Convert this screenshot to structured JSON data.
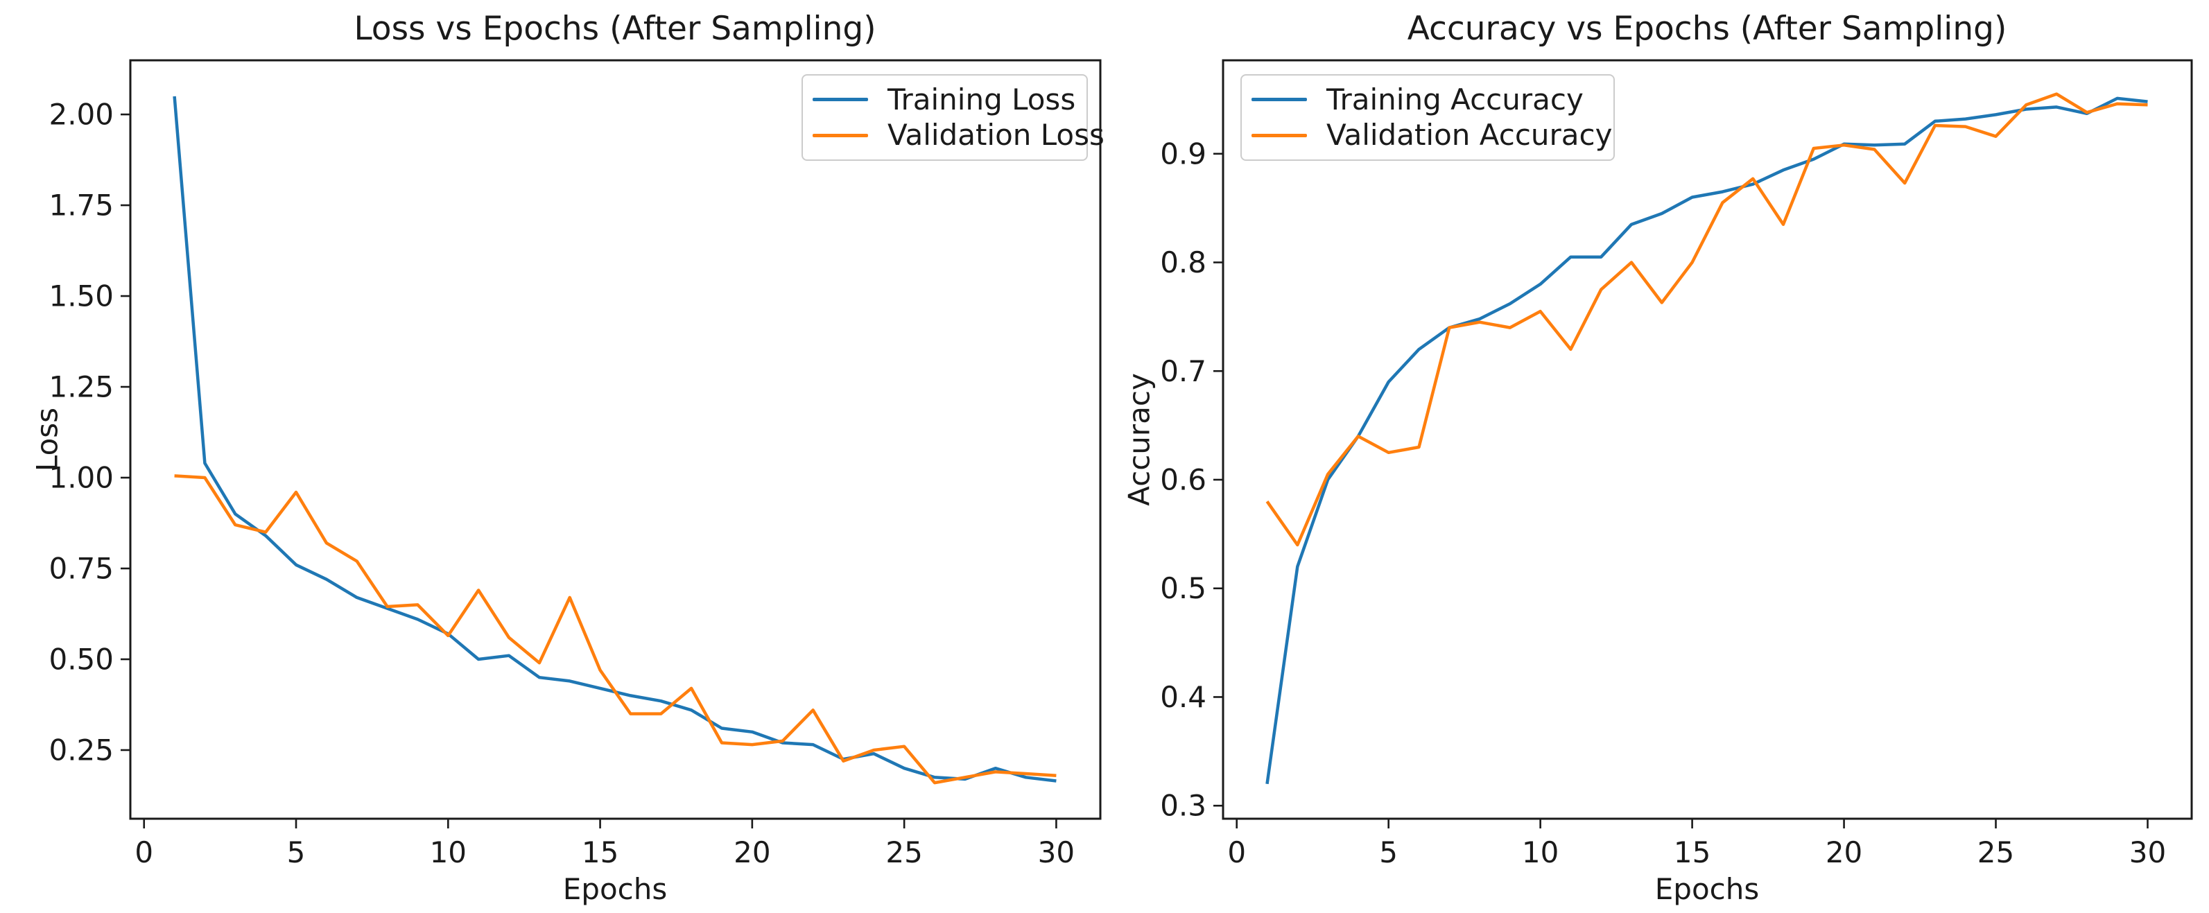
{
  "figure": {
    "background_color": "#ffffff",
    "text_color": "#1a1a1a",
    "accent_blue": "#1f77b4",
    "accent_orange": "#ff7f0e"
  },
  "chart_data": [
    {
      "type": "line",
      "title": "Loss vs Epochs (After Sampling)",
      "xlabel": "Epochs",
      "ylabel": "Loss",
      "x": [
        1,
        2,
        3,
        4,
        5,
        6,
        7,
        8,
        9,
        10,
        11,
        12,
        13,
        14,
        15,
        16,
        17,
        18,
        19,
        20,
        21,
        22,
        23,
        24,
        25,
        26,
        27,
        28,
        29,
        30
      ],
      "series": [
        {
          "name": "Training Loss",
          "color": "#1f77b4",
          "values": [
            2.05,
            1.04,
            0.9,
            0.84,
            0.76,
            0.72,
            0.67,
            0.64,
            0.61,
            0.57,
            0.5,
            0.51,
            0.45,
            0.44,
            0.42,
            0.4,
            0.385,
            0.36,
            0.31,
            0.3,
            0.27,
            0.265,
            0.225,
            0.24,
            0.2,
            0.175,
            0.17,
            0.2,
            0.175,
            0.165
          ]
        },
        {
          "name": "Validation Loss",
          "color": "#ff7f0e",
          "values": [
            1.005,
            1.0,
            0.87,
            0.85,
            0.96,
            0.82,
            0.77,
            0.645,
            0.65,
            0.565,
            0.69,
            0.56,
            0.49,
            0.67,
            0.47,
            0.35,
            0.35,
            0.42,
            0.27,
            0.265,
            0.275,
            0.36,
            0.22,
            0.25,
            0.26,
            0.16,
            0.175,
            0.19,
            0.185,
            0.18
          ]
        }
      ],
      "xlim": [
        -0.45,
        31.45
      ],
      "ylim": [
        0.061,
        2.149
      ],
      "xticks": {
        "values": [
          0,
          5,
          10,
          15,
          20,
          25,
          30
        ],
        "labels": [
          "0",
          "5",
          "10",
          "15",
          "20",
          "25",
          "30"
        ]
      },
      "yticks": {
        "values": [
          0.25,
          0.5,
          0.75,
          1.0,
          1.25,
          1.5,
          1.75,
          2.0
        ],
        "labels": [
          "0.25",
          "0.50",
          "0.75",
          "1.00",
          "1.25",
          "1.50",
          "1.75",
          "2.00"
        ]
      },
      "grid": false,
      "legend_position": "upper right",
      "legend": [
        {
          "label": "Training Loss",
          "color": "#1f77b4"
        },
        {
          "label": "Validation Loss",
          "color": "#ff7f0e"
        }
      ]
    },
    {
      "type": "line",
      "title": "Accuracy vs Epochs (After Sampling)",
      "xlabel": "Epochs",
      "ylabel": "Accuracy",
      "x": [
        1,
        2,
        3,
        4,
        5,
        6,
        7,
        8,
        9,
        10,
        11,
        12,
        13,
        14,
        15,
        16,
        17,
        18,
        19,
        20,
        21,
        22,
        23,
        24,
        25,
        26,
        27,
        28,
        29,
        30
      ],
      "series": [
        {
          "name": "Training Accuracy",
          "color": "#1f77b4",
          "values": [
            0.32,
            0.52,
            0.6,
            0.64,
            0.69,
            0.72,
            0.74,
            0.748,
            0.762,
            0.78,
            0.805,
            0.805,
            0.835,
            0.845,
            0.86,
            0.865,
            0.872,
            0.885,
            0.895,
            0.909,
            0.908,
            0.909,
            0.93,
            0.932,
            0.936,
            0.941,
            0.943,
            0.937,
            0.951,
            0.948
          ]
        },
        {
          "name": "Validation Accuracy",
          "color": "#ff7f0e",
          "values": [
            0.58,
            0.54,
            0.605,
            0.64,
            0.625,
            0.63,
            0.74,
            0.745,
            0.74,
            0.755,
            0.72,
            0.775,
            0.8,
            0.763,
            0.8,
            0.855,
            0.877,
            0.835,
            0.905,
            0.908,
            0.904,
            0.873,
            0.926,
            0.925,
            0.916,
            0.945,
            0.955,
            0.938,
            0.946,
            0.945
          ]
        }
      ],
      "xlim": [
        -0.45,
        31.45
      ],
      "ylim": [
        0.288,
        0.986
      ],
      "xticks": {
        "values": [
          0,
          5,
          10,
          15,
          20,
          25,
          30
        ],
        "labels": [
          "0",
          "5",
          "10",
          "15",
          "20",
          "25",
          "30"
        ]
      },
      "yticks": {
        "values": [
          0.3,
          0.4,
          0.5,
          0.6,
          0.7,
          0.8,
          0.9
        ],
        "labels": [
          "0.3",
          "0.4",
          "0.5",
          "0.6",
          "0.7",
          "0.8",
          "0.9"
        ]
      },
      "grid": false,
      "legend_position": "upper left",
      "legend": [
        {
          "label": "Training Accuracy",
          "color": "#1f77b4"
        },
        {
          "label": "Validation Accuracy",
          "color": "#ff7f0e"
        }
      ]
    }
  ]
}
